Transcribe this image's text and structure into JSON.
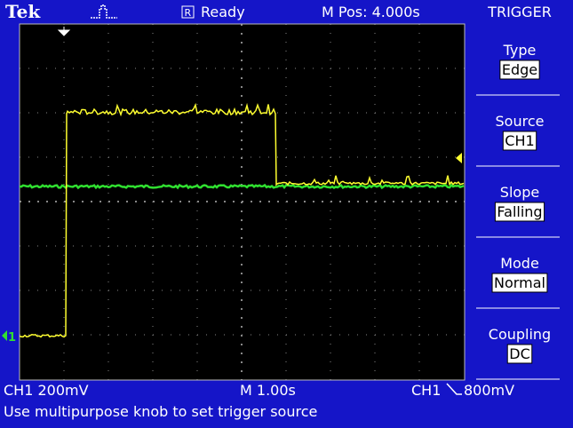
{
  "header": {
    "logo": "Tek",
    "status": "Ready",
    "position": "M Pos: 4.000s",
    "menu_title": "TRIGGER"
  },
  "menu": [
    {
      "label": "Type",
      "value": "Edge"
    },
    {
      "label": "Source",
      "value": "CH1"
    },
    {
      "label": "Slope",
      "value": "Falling"
    },
    {
      "label": "Mode",
      "value": "Normal"
    },
    {
      "label": "Coupling",
      "value": "DC"
    }
  ],
  "footer": {
    "channel": "CH1  200mV",
    "timebase": "M 1.00s",
    "trigger_source": "CH1",
    "trigger_level": "800mV",
    "message": "Use multipurpose knob to set trigger source"
  }
}
